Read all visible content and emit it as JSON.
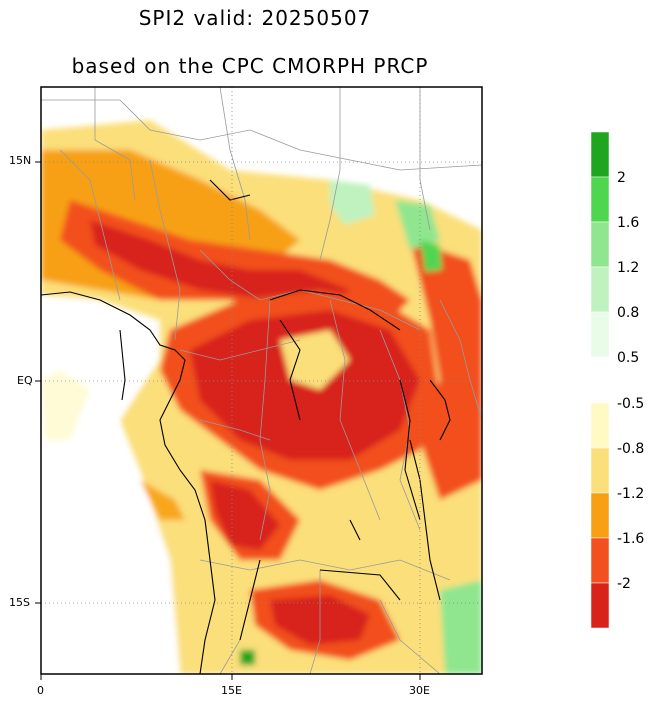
{
  "title": {
    "line1": "SPI2   valid: 20250507",
    "line2": "based on the CPC CMORPH PRCP"
  },
  "axes": {
    "lat_labels": [
      "15N",
      "EQ",
      "15S"
    ],
    "lon_labels": [
      "0",
      "15E",
      "30E"
    ]
  },
  "colorbar": {
    "positive": {
      "labels": [
        "2",
        "1.6",
        "1.2",
        "0.8",
        "0.5"
      ],
      "colors": [
        "#1fa51f",
        "#4fd64f",
        "#8fe68f",
        "#bff2bf",
        "#e8fce8",
        "#e8fce8"
      ]
    },
    "negative": {
      "labels": [
        "-0.5",
        "-0.8",
        "-1.2",
        "-1.6",
        "-2"
      ],
      "colors": [
        "#fff9c4",
        "#fbdf7a",
        "#f7a013",
        "#f2501e",
        "#d8231a"
      ]
    }
  },
  "colors": {
    "dry_extreme": "#d8231a",
    "dry_severe": "#f2501e",
    "dry_moderate": "#f7a013",
    "dry_mild": "#fbdf7a",
    "near_normal_dry": "#fff9c4",
    "wet_mild": "#bff2bf",
    "wet_moderate": "#8fe68f",
    "wet_severe": "#1fa51f"
  }
}
